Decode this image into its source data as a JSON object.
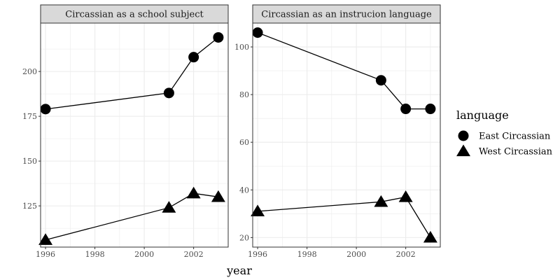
{
  "chart_data": {
    "type": "line",
    "xlabel": "year",
    "legend": {
      "title": "language",
      "placement": "right",
      "entries": [
        {
          "name": "East Circassian",
          "shape": "circle"
        },
        {
          "name": "West Circassian",
          "shape": "triangle"
        }
      ]
    },
    "grid": true,
    "colors": {
      "series": "#000000",
      "strip_bg": "#d9d9d9",
      "grid": "#ebebeb",
      "border": "#333333"
    },
    "panels": [
      {
        "title": "Circassian as a school subject",
        "x_ticks": [
          1996,
          1998,
          2000,
          2002
        ],
        "y_ticks": [
          125,
          150,
          175,
          200
        ],
        "xlim": [
          1995.8,
          2003.4
        ],
        "ylim": [
          102,
          227
        ],
        "series": [
          {
            "name": "East Circassian",
            "x": [
              1996,
              2001,
              2002,
              2003
            ],
            "y": [
              179,
              188,
              208,
              219
            ]
          },
          {
            "name": "West Circassian",
            "x": [
              1996,
              2001,
              2002,
              2003
            ],
            "y": [
              106,
              124,
              132,
              130
            ]
          }
        ]
      },
      {
        "title": "Circassian as an instrucion language",
        "x_ticks": [
          1996,
          1998,
          2000,
          2002
        ],
        "y_ticks": [
          20,
          40,
          60,
          80,
          100
        ],
        "xlim": [
          1995.8,
          2003.4
        ],
        "ylim": [
          16,
          110
        ],
        "series": [
          {
            "name": "East Circassian",
            "x": [
              1996,
              2001,
              2002,
              2003
            ],
            "y": [
              106,
              86,
              74,
              74
            ]
          },
          {
            "name": "West Circassian",
            "x": [
              1996,
              2001,
              2002,
              2003
            ],
            "y": [
              31,
              35,
              37,
              20
            ]
          }
        ]
      }
    ]
  }
}
